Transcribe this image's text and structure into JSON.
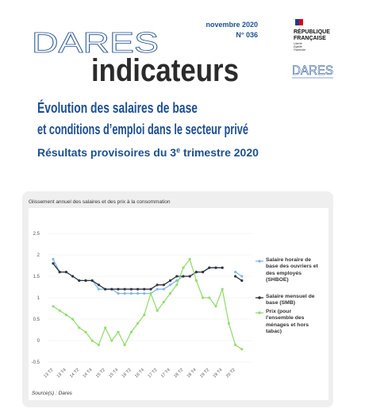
{
  "header": {
    "brand": "DARES",
    "product": "indicateurs",
    "date": "novembre 2020",
    "number": "N° 036",
    "republic": [
      "RÉPUBLIQUE",
      "FRANÇAISE"
    ],
    "motto": [
      "Liberté",
      "Égalité",
      "Fraternité"
    ],
    "logo": "DARES"
  },
  "title": [
    "Évolution des salaires de base",
    "et conditions d’emploi dans le secteur privé"
  ],
  "subtitle": [
    "Résultats provisoires du 3",
    "e",
    " trimestre 2020"
  ],
  "chart_data": {
    "type": "line",
    "title": "Glissement annuel des salaires et des prix à la consommation",
    "source": "Source(s) : Dares",
    "categories": [
      "13 T2",
      null,
      "13 T4",
      null,
      "14 T2",
      null,
      "14 T4",
      null,
      "15 T2",
      null,
      "15 T4",
      null,
      "16 T2",
      null,
      "16 T4",
      null,
      "17 T2",
      null,
      "17 T4",
      null,
      "18 T2",
      null,
      "18 T4",
      null,
      "19 T2",
      null,
      "19 T4",
      null,
      "20 T2",
      null
    ],
    "series": [
      {
        "name": "Salaire horaire de base des ouvriers et des employés (SHBOE)",
        "color": "#86b8e8",
        "values": [
          1.9,
          1.6,
          1.6,
          1.5,
          1.4,
          1.4,
          1.4,
          1.2,
          1.2,
          1.2,
          1.1,
          1.1,
          1.1,
          1.1,
          1.1,
          1.1,
          1.2,
          1.2,
          1.3,
          1.4,
          1.5,
          1.5,
          1.6,
          1.6,
          1.7,
          1.7,
          1.7,
          null,
          1.6,
          1.5
        ]
      },
      {
        "name": "Salaire mensuel de base (SMB)",
        "color": "#2f3440",
        "values": [
          1.8,
          1.6,
          1.6,
          1.5,
          1.4,
          1.4,
          1.4,
          1.3,
          1.2,
          1.2,
          1.2,
          1.2,
          1.2,
          1.2,
          1.2,
          1.2,
          1.3,
          1.3,
          1.4,
          1.5,
          1.5,
          1.5,
          1.6,
          1.6,
          1.7,
          1.7,
          1.7,
          null,
          1.5,
          1.4
        ]
      },
      {
        "name": "Prix (pour l'ensemble des ménages et hors tabac)",
        "color": "#93de6e",
        "values": [
          0.8,
          0.7,
          0.6,
          0.5,
          0.3,
          0.2,
          0.0,
          -0.1,
          0.3,
          0.0,
          0.2,
          -0.1,
          0.2,
          0.4,
          0.6,
          1.1,
          0.7,
          0.9,
          1.1,
          1.3,
          1.7,
          1.9,
          1.4,
          1.0,
          1.0,
          0.8,
          1.2,
          0.4,
          -0.1,
          -0.2
        ]
      }
    ],
    "ylim": [
      -0.5,
      2.5
    ],
    "yticks": [
      -0.5,
      0,
      0.5,
      1,
      1.5,
      2,
      2.5
    ],
    "grid": true
  }
}
